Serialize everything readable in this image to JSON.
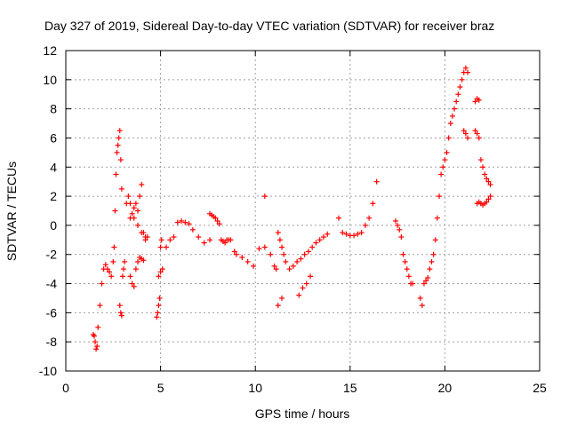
{
  "chart_data": {
    "type": "scatter",
    "title": "Day 327 of 2019, Sidereal Day-to-day VTEC variation (SDTVAR) for receiver braz",
    "xlabel": "GPS time / hours",
    "ylabel": "SDTVAR / TECUs",
    "xlim": [
      0,
      25
    ],
    "ylim": [
      -10,
      12
    ],
    "x_ticks": [
      "0",
      "5",
      "10",
      "15",
      "20",
      "25"
    ],
    "y_ticks": [
      "-10",
      "-8",
      "-6",
      "-4",
      "-2",
      "0",
      "2",
      "4",
      "6",
      "8",
      "10",
      "12"
    ],
    "grid": true,
    "marker": "+",
    "series": [
      {
        "name": "SDTVAR",
        "color": "#ff0000",
        "x": [
          1.45,
          1.5,
          1.55,
          1.6,
          1.65,
          1.7,
          1.8,
          1.9,
          2.0,
          2.1,
          2.2,
          2.3,
          2.4,
          2.5,
          2.55,
          2.6,
          2.65,
          2.7,
          2.75,
          2.8,
          2.85,
          2.9,
          2.95,
          2.85,
          2.9,
          2.95,
          3.0,
          3.05,
          3.1,
          3.2,
          3.3,
          3.4,
          3.5,
          3.6,
          3.7,
          3.8,
          3.9,
          4.0,
          4.1,
          4.2,
          4.3,
          3.4,
          3.5,
          3.6,
          3.7,
          3.8,
          3.9,
          4.0,
          4.1,
          3.4,
          3.6,
          3.8,
          4.0,
          4.2,
          4.8,
          4.85,
          4.9,
          4.95,
          5.0,
          5.05,
          4.9,
          5.0,
          5.1,
          5.3,
          5.5,
          5.7,
          5.9,
          6.1,
          6.3,
          6.5,
          6.7,
          7.0,
          7.3,
          7.6,
          7.6,
          7.7,
          7.8,
          7.9,
          8.0,
          8.1,
          8.2,
          8.3,
          8.4,
          8.5,
          8.6,
          8.7,
          8.9,
          9.0,
          9.3,
          9.6,
          9.9,
          10.2,
          10.5,
          10.8,
          10.5,
          11.0,
          11.1,
          11.2,
          11.3,
          11.4,
          11.5,
          11.6,
          11.2,
          11.4,
          11.8,
          12.0,
          12.2,
          12.4,
          12.6,
          12.8,
          13.0,
          13.2,
          13.4,
          13.6,
          13.8,
          12.3,
          12.5,
          12.7,
          12.9,
          14.4,
          14.6,
          14.8,
          15.0,
          15.2,
          15.4,
          15.6,
          15.8,
          16.0,
          16.2,
          16.4,
          17.4,
          17.5,
          17.6,
          17.7,
          17.8,
          17.9,
          18.0,
          18.1,
          18.2,
          18.3,
          18.7,
          18.8,
          18.9,
          19.0,
          19.1,
          19.2,
          19.3,
          19.4,
          19.5,
          19.6,
          19.7,
          19.8,
          19.9,
          20.0,
          20.1,
          20.2,
          20.3,
          20.4,
          20.5,
          20.6,
          20.7,
          20.8,
          20.9,
          21.0,
          21.1,
          21.2,
          21.0,
          21.1,
          21.2,
          21.6,
          21.7,
          21.8,
          21.6,
          21.7,
          21.8,
          21.9,
          22.0,
          22.1,
          22.2,
          22.3,
          22.4,
          21.7,
          21.8,
          21.9,
          22.0,
          22.1,
          22.2,
          22.3,
          22.4
        ],
        "y": [
          -7.5,
          -7.6,
          -8.0,
          -8.5,
          -8.3,
          -7.0,
          -5.5,
          -4.0,
          -3.0,
          -2.7,
          -3.0,
          -3.2,
          -3.5,
          -2.5,
          -1.5,
          1.0,
          3.5,
          5.0,
          5.5,
          6.0,
          6.5,
          4.5,
          2.5,
          -5.5,
          -6.0,
          -6.2,
          -3.5,
          -3.0,
          -2.5,
          1.5,
          2.0,
          1.5,
          0.8,
          1.2,
          1.5,
          1.0,
          2.0,
          2.8,
          -0.5,
          -1.0,
          -0.8,
          -3.5,
          -4.0,
          -4.2,
          -3.0,
          -2.5,
          -2.2,
          -2.3,
          -2.4,
          0.5,
          0.5,
          0.0,
          -0.5,
          -0.8,
          -6.3,
          -6.0,
          -5.5,
          -5.0,
          -1.5,
          -1.0,
          -3.5,
          -3.2,
          -3.0,
          -1.5,
          -1.0,
          -0.8,
          0.2,
          0.3,
          0.2,
          0.1,
          -0.3,
          -0.8,
          -1.2,
          -1.0,
          0.8,
          0.7,
          0.6,
          0.5,
          0.3,
          0.1,
          -1.0,
          -1.1,
          -1.2,
          -1.0,
          -1.0,
          -1.0,
          -1.8,
          -2.0,
          -2.2,
          -2.5,
          -2.8,
          -1.6,
          -1.5,
          -2.0,
          2.0,
          -2.8,
          -3.0,
          -0.5,
          -1.0,
          -1.5,
          -2.0,
          -2.5,
          -5.5,
          -5.0,
          -3.0,
          -2.8,
          -2.5,
          -2.3,
          -2.0,
          -1.8,
          -1.5,
          -1.2,
          -1.0,
          -0.8,
          -0.6,
          -4.8,
          -4.3,
          -4.0,
          -3.5,
          0.5,
          -0.5,
          -0.6,
          -0.7,
          -0.7,
          -0.6,
          -0.5,
          0.0,
          0.5,
          1.5,
          3.0,
          0.3,
          0.0,
          -0.3,
          -0.8,
          -2.0,
          -2.5,
          -3.0,
          -3.5,
          -4.0,
          -4.0,
          -5.0,
          -5.5,
          -4.0,
          -3.8,
          -3.6,
          -3.0,
          -2.5,
          -2.0,
          -1.0,
          0.5,
          2.0,
          3.5,
          4.0,
          4.5,
          5.0,
          6.0,
          7.0,
          7.5,
          8.0,
          8.5,
          9.0,
          9.5,
          10.0,
          10.5,
          10.8,
          10.5,
          6.5,
          6.3,
          6.0,
          8.5,
          8.7,
          8.6,
          6.5,
          6.3,
          6.0,
          4.5,
          4.0,
          3.5,
          3.2,
          3.0,
          2.8,
          1.5,
          1.6,
          1.5,
          1.4,
          1.5,
          1.6,
          1.8,
          2.0
        ]
      }
    ]
  }
}
